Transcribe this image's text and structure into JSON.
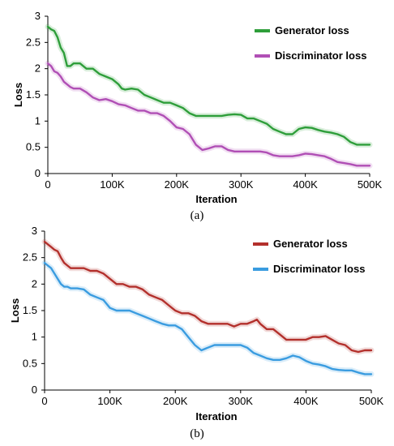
{
  "chart_data": [
    {
      "type": "line",
      "caption": "(a)",
      "xlabel": "Iteration",
      "ylabel": "Loss",
      "xlim": [
        0,
        500000
      ],
      "ylim": [
        0,
        3
      ],
      "xticks": [
        0,
        100000,
        200000,
        300000,
        400000,
        500000
      ],
      "xtick_labels": [
        "0",
        "100K",
        "200K",
        "300K",
        "400K",
        "500K"
      ],
      "yticks": [
        0,
        0.5,
        1,
        1.5,
        2,
        2.5,
        3
      ],
      "ytick_labels": [
        "0",
        "0.5",
        "1",
        "1.5",
        "2",
        "2.5",
        "3"
      ],
      "grid": false,
      "legend_position": "top-right",
      "series": [
        {
          "name": "Generator loss",
          "color": "#2e9e3a",
          "x": [
            0,
            5000,
            10000,
            15000,
            20000,
            25000,
            30000,
            35000,
            40000,
            50000,
            60000,
            70000,
            80000,
            90000,
            100000,
            110000,
            115000,
            120000,
            130000,
            140000,
            150000,
            160000,
            170000,
            180000,
            190000,
            200000,
            210000,
            220000,
            230000,
            240000,
            250000,
            260000,
            270000,
            280000,
            290000,
            300000,
            310000,
            320000,
            330000,
            340000,
            350000,
            360000,
            370000,
            380000,
            390000,
            400000,
            410000,
            420000,
            430000,
            440000,
            450000,
            460000,
            470000,
            480000,
            490000,
            500000
          ],
          "y": [
            2.8,
            2.75,
            2.72,
            2.6,
            2.4,
            2.3,
            2.05,
            2.05,
            2.1,
            2.1,
            2.0,
            2.0,
            1.9,
            1.85,
            1.8,
            1.7,
            1.62,
            1.6,
            1.62,
            1.6,
            1.5,
            1.45,
            1.4,
            1.35,
            1.35,
            1.3,
            1.25,
            1.15,
            1.1,
            1.1,
            1.1,
            1.1,
            1.1,
            1.12,
            1.13,
            1.12,
            1.05,
            1.05,
            1.0,
            0.95,
            0.85,
            0.8,
            0.75,
            0.75,
            0.85,
            0.88,
            0.87,
            0.83,
            0.8,
            0.78,
            0.75,
            0.7,
            0.6,
            0.55,
            0.55,
            0.55
          ]
        },
        {
          "name": "Discriminator loss",
          "color": "#b04fb5",
          "x": [
            0,
            5000,
            10000,
            15000,
            20000,
            25000,
            30000,
            35000,
            40000,
            50000,
            60000,
            70000,
            80000,
            90000,
            100000,
            110000,
            120000,
            130000,
            140000,
            150000,
            160000,
            170000,
            180000,
            190000,
            200000,
            210000,
            220000,
            230000,
            240000,
            250000,
            260000,
            270000,
            280000,
            290000,
            300000,
            310000,
            320000,
            330000,
            340000,
            350000,
            360000,
            370000,
            380000,
            390000,
            400000,
            410000,
            420000,
            430000,
            440000,
            450000,
            460000,
            470000,
            480000,
            490000,
            500000
          ],
          "y": [
            2.1,
            2.05,
            1.95,
            1.92,
            1.85,
            1.75,
            1.7,
            1.65,
            1.62,
            1.62,
            1.55,
            1.45,
            1.4,
            1.42,
            1.38,
            1.32,
            1.3,
            1.25,
            1.2,
            1.2,
            1.15,
            1.15,
            1.1,
            1.0,
            0.88,
            0.85,
            0.75,
            0.55,
            0.45,
            0.48,
            0.52,
            0.52,
            0.45,
            0.42,
            0.42,
            0.42,
            0.42,
            0.42,
            0.4,
            0.35,
            0.33,
            0.33,
            0.33,
            0.35,
            0.38,
            0.37,
            0.35,
            0.33,
            0.28,
            0.22,
            0.2,
            0.18,
            0.15,
            0.15,
            0.15
          ]
        }
      ]
    },
    {
      "type": "line",
      "caption": "(b)",
      "xlabel": "Iteration",
      "ylabel": "Loss",
      "xlim": [
        0,
        500000
      ],
      "ylim": [
        0,
        3
      ],
      "xticks": [
        0,
        100000,
        200000,
        300000,
        400000,
        500000
      ],
      "xtick_labels": [
        "0",
        "100K",
        "200K",
        "300K",
        "400K",
        "500K"
      ],
      "yticks": [
        0,
        0.5,
        1,
        1.5,
        2,
        2.5,
        3
      ],
      "ytick_labels": [
        "0",
        "0.5",
        "1",
        "1.5",
        "2",
        "2.5",
        "3"
      ],
      "grid": false,
      "legend_position": "top-right",
      "series": [
        {
          "name": "Generator loss",
          "color": "#b3302c",
          "x": [
            0,
            5000,
            10000,
            15000,
            20000,
            25000,
            30000,
            35000,
            40000,
            50000,
            60000,
            70000,
            80000,
            90000,
            100000,
            110000,
            120000,
            130000,
            140000,
            150000,
            160000,
            170000,
            180000,
            190000,
            200000,
            210000,
            220000,
            230000,
            240000,
            250000,
            260000,
            270000,
            280000,
            290000,
            300000,
            310000,
            320000,
            325000,
            330000,
            340000,
            350000,
            360000,
            370000,
            380000,
            390000,
            400000,
            410000,
            420000,
            430000,
            440000,
            450000,
            460000,
            470000,
            480000,
            490000,
            500000
          ],
          "y": [
            2.8,
            2.75,
            2.7,
            2.65,
            2.62,
            2.5,
            2.4,
            2.35,
            2.3,
            2.3,
            2.3,
            2.25,
            2.25,
            2.2,
            2.1,
            2.0,
            2.0,
            1.95,
            1.95,
            1.9,
            1.8,
            1.75,
            1.7,
            1.6,
            1.5,
            1.45,
            1.45,
            1.4,
            1.3,
            1.25,
            1.25,
            1.25,
            1.25,
            1.2,
            1.25,
            1.25,
            1.3,
            1.33,
            1.25,
            1.15,
            1.15,
            1.05,
            0.95,
            0.95,
            0.95,
            0.95,
            1.0,
            1.0,
            1.02,
            0.95,
            0.88,
            0.85,
            0.75,
            0.72,
            0.75,
            0.75
          ]
        },
        {
          "name": "Discriminator loss",
          "color": "#3a9ce0",
          "x": [
            0,
            5000,
            10000,
            15000,
            20000,
            25000,
            30000,
            35000,
            40000,
            50000,
            60000,
            70000,
            80000,
            90000,
            100000,
            110000,
            120000,
            130000,
            140000,
            150000,
            160000,
            170000,
            180000,
            190000,
            200000,
            210000,
            220000,
            230000,
            240000,
            250000,
            260000,
            270000,
            280000,
            290000,
            300000,
            310000,
            320000,
            330000,
            340000,
            350000,
            360000,
            370000,
            380000,
            390000,
            400000,
            410000,
            420000,
            430000,
            440000,
            450000,
            460000,
            470000,
            480000,
            490000,
            500000
          ],
          "y": [
            2.4,
            2.35,
            2.3,
            2.2,
            2.1,
            2.0,
            1.95,
            1.95,
            1.92,
            1.92,
            1.9,
            1.8,
            1.75,
            1.7,
            1.55,
            1.5,
            1.5,
            1.5,
            1.45,
            1.4,
            1.35,
            1.3,
            1.25,
            1.22,
            1.22,
            1.15,
            1.0,
            0.85,
            0.75,
            0.8,
            0.85,
            0.85,
            0.85,
            0.85,
            0.85,
            0.8,
            0.7,
            0.65,
            0.6,
            0.57,
            0.57,
            0.6,
            0.65,
            0.62,
            0.55,
            0.5,
            0.48,
            0.45,
            0.4,
            0.38,
            0.37,
            0.37,
            0.33,
            0.3,
            0.3
          ]
        }
      ]
    }
  ]
}
